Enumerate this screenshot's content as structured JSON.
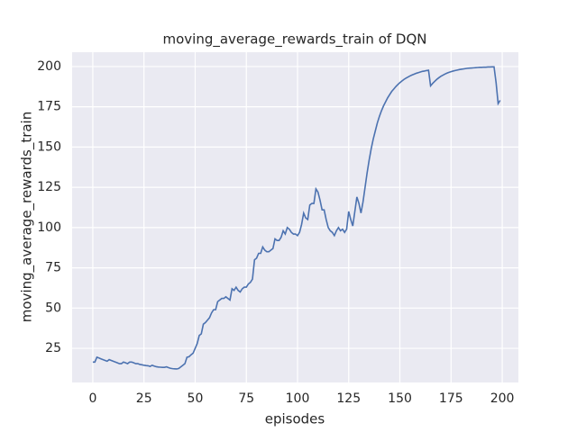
{
  "chart_data": {
    "type": "line",
    "title": "moving_average_rewards_train of DQN",
    "x_label": "episodes",
    "y_label": "moving_average_rewards_train",
    "x": [
      0,
      1,
      2,
      3,
      4,
      5,
      6,
      7,
      8,
      9,
      10,
      11,
      12,
      13,
      14,
      15,
      16,
      17,
      18,
      19,
      20,
      21,
      22,
      23,
      24,
      25,
      26,
      27,
      28,
      29,
      30,
      31,
      32,
      33,
      34,
      35,
      36,
      37,
      38,
      39,
      40,
      41,
      42,
      43,
      44,
      45,
      46,
      47,
      48,
      49,
      50,
      51,
      52,
      53,
      54,
      55,
      56,
      57,
      58,
      59,
      60,
      61,
      62,
      63,
      64,
      65,
      66,
      67,
      68,
      69,
      70,
      71,
      72,
      73,
      74,
      75,
      76,
      77,
      78,
      79,
      80,
      81,
      82,
      83,
      84,
      85,
      86,
      87,
      88,
      89,
      90,
      91,
      92,
      93,
      94,
      95,
      96,
      97,
      98,
      99,
      100,
      101,
      102,
      103,
      104,
      105,
      106,
      107,
      108,
      109,
      110,
      111,
      112,
      113,
      114,
      115,
      116,
      117,
      118,
      119,
      120,
      121,
      122,
      123,
      124,
      125,
      126,
      127,
      128,
      129,
      130,
      131,
      132,
      133,
      134,
      135,
      136,
      137,
      138,
      139,
      140,
      141,
      142,
      143,
      144,
      145,
      146,
      147,
      148,
      149,
      150,
      151,
      152,
      153,
      154,
      155,
      156,
      157,
      158,
      159,
      160,
      161,
      162,
      163,
      164,
      165,
      166,
      167,
      168,
      169,
      170,
      171,
      172,
      173,
      174,
      175,
      176,
      177,
      178,
      179,
      180,
      181,
      182,
      183,
      184,
      185,
      186,
      187,
      188,
      189,
      190,
      191,
      192,
      193,
      194,
      195,
      196,
      197,
      198,
      199
    ],
    "series": [
      {
        "name": "moving_average_rewards_train",
        "color": "#4c72b0",
        "values": [
          16.5,
          16.5,
          19.5,
          19,
          18.5,
          18,
          17.5,
          17,
          18,
          17.5,
          17,
          16.5,
          16,
          15.5,
          15.5,
          16.5,
          16,
          15.5,
          16.5,
          16.5,
          16,
          15.5,
          15.5,
          15,
          14.8,
          14.5,
          14.3,
          14.2,
          13.8,
          14.5,
          14,
          13.6,
          13.4,
          13.3,
          13.2,
          13.2,
          13.5,
          13,
          12.6,
          12.4,
          12.3,
          12.2,
          12.5,
          13.5,
          14.5,
          15.5,
          19.5,
          19.8,
          21,
          22,
          25,
          28,
          33,
          34,
          40,
          41,
          42.5,
          44,
          47,
          49,
          49,
          54,
          55,
          56,
          56,
          57,
          56,
          55,
          62,
          61,
          63,
          61,
          60,
          62,
          63,
          63,
          65,
          66,
          68,
          80,
          81,
          84,
          84,
          88,
          86,
          85,
          85,
          86,
          87,
          93,
          92,
          92,
          94,
          98,
          96,
          100,
          99,
          97,
          96,
          96,
          95,
          97,
          102,
          109,
          106,
          105,
          114,
          115,
          115,
          124,
          122,
          117,
          111,
          111,
          105,
          100,
          98,
          97,
          95,
          98,
          100,
          98,
          99,
          97,
          99,
          110,
          105,
          101,
          110,
          119,
          115,
          109,
          116,
          125,
          134,
          142,
          149,
          155,
          160,
          165,
          169,
          172.5,
          175.5,
          178,
          180.5,
          182.5,
          184.5,
          186,
          187.5,
          188.8,
          190,
          191,
          192,
          192.8,
          193.5,
          194.2,
          194.8,
          195.3,
          195.8,
          196.2,
          196.6,
          197,
          197.2,
          197.5,
          197.7,
          188,
          189.5,
          190.8,
          192,
          193,
          193.9,
          194.6,
          195.3,
          195.9,
          196.4,
          196.8,
          197.2,
          197.5,
          197.8,
          198.1,
          198.3,
          198.5,
          198.7,
          198.9,
          199,
          199.1,
          199.2,
          199.3,
          199.4,
          199.5,
          199.5,
          199.6,
          199.6,
          199.7,
          199.7,
          199.8,
          199.8,
          190,
          177,
          179
        ]
      }
    ],
    "xlim": [
      -10.1,
      207.9
    ],
    "xticks": [
      0,
      25,
      50,
      75,
      100,
      125,
      150,
      175,
      200
    ],
    "ylim": [
      3.8,
      208.9
    ],
    "yticks": [
      25,
      50,
      75,
      100,
      125,
      150,
      175,
      200
    ],
    "grid": true
  }
}
